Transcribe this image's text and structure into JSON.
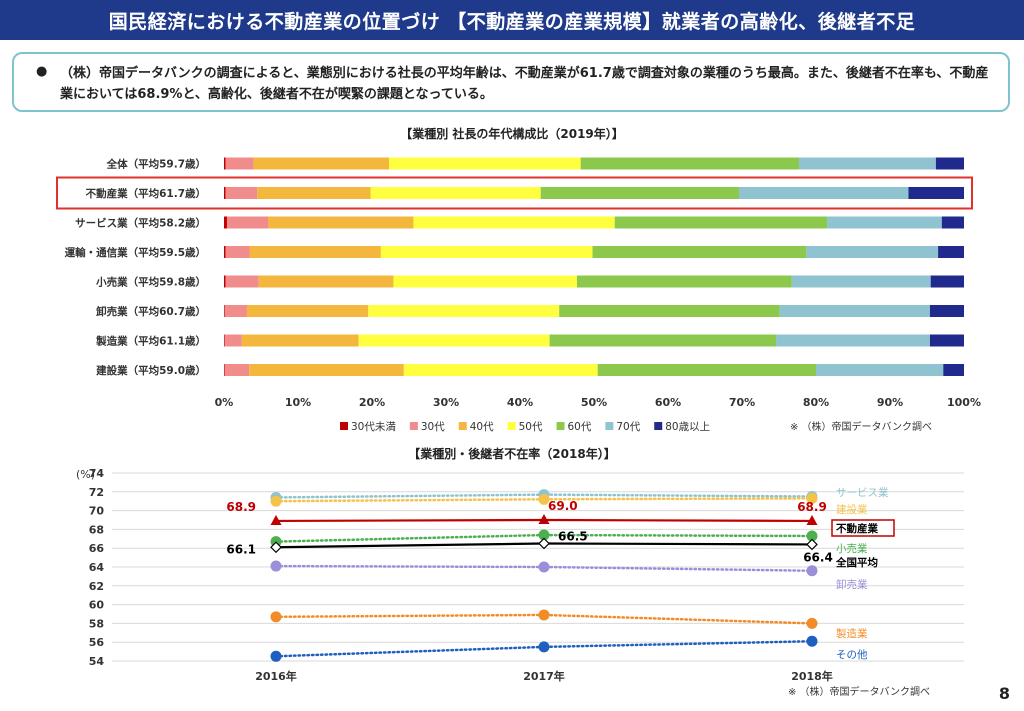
{
  "header": {
    "title": "国民経済における不動産業の位置づけ 【不動産業の産業規模】就業者の高齢化、後継者不足"
  },
  "note": {
    "bullet": "●",
    "text": "（株）帝国データバンクの調査によると、業態別における社長の平均年齢は、不動産業が61.7歳で調査対象の業種のうち最高。また、後継者不在率も、不動産業においては68.9%と、高齢化、後継者不在が喫緊の課題となっている。"
  },
  "page_number": "8",
  "chart_data": [
    {
      "type": "bar",
      "orientation": "horizontal-stacked-100",
      "title": "【業種別 社長の年代構成比（2019年）】",
      "categories": [
        "全体（平均59.7歳）",
        "不動産業（平均61.7歳）",
        "サービス業（平均58.2歳）",
        "運輸・通信業（平均59.5歳）",
        "小売業（平均59.8歳）",
        "卸売業（平均60.7歳）",
        "製造業（平均61.1歳）",
        "建設業（平均59.0歳）"
      ],
      "highlight_category": "不動産業（平均61.7歳）",
      "series": [
        {
          "name": "30代未満",
          "color": "#c00000",
          "values": [
            0.2,
            0.2,
            0.4,
            0.2,
            0.2,
            0.1,
            0.1,
            0.1
          ]
        },
        {
          "name": "30代",
          "color": "#f08c8c",
          "values": [
            3.8,
            4.3,
            5.6,
            3.3,
            4.5,
            3.0,
            2.3,
            3.3
          ]
        },
        {
          "name": "40代",
          "color": "#f4b73e",
          "values": [
            18.3,
            15.3,
            19.6,
            17.7,
            18.2,
            16.4,
            15.8,
            20.9
          ]
        },
        {
          "name": "50代",
          "color": "#ffff3f",
          "values": [
            25.9,
            23.0,
            27.2,
            28.6,
            24.8,
            25.8,
            25.8,
            26.2
          ]
        },
        {
          "name": "60代",
          "color": "#8cc84b",
          "values": [
            29.5,
            26.8,
            28.7,
            28.9,
            29.0,
            29.8,
            30.6,
            29.5
          ]
        },
        {
          "name": "70代",
          "color": "#8ec3cf",
          "values": [
            18.5,
            22.9,
            15.5,
            17.8,
            18.8,
            20.3,
            20.8,
            17.2
          ]
        },
        {
          "name": "80歳以上",
          "color": "#1f2a8c",
          "values": [
            3.8,
            7.5,
            3.0,
            3.5,
            4.5,
            4.6,
            4.6,
            2.8
          ]
        }
      ],
      "x_ticks": [
        "0%",
        "10%",
        "20%",
        "30%",
        "40%",
        "50%",
        "60%",
        "70%",
        "80%",
        "90%",
        "100%"
      ],
      "xlim": [
        0,
        100
      ],
      "legend_placement": "bottom",
      "source": "※ （株）帝国データバンク調べ"
    },
    {
      "type": "line",
      "title": "【業種別・後継者不在率（2018年）】",
      "ylabel": "(%)",
      "ylim": [
        54,
        74
      ],
      "y_ticks": [
        "54",
        "56",
        "58",
        "60",
        "62",
        "64",
        "66",
        "68",
        "70",
        "72",
        "74"
      ],
      "x": [
        "2016年",
        "2017年",
        "2018年"
      ],
      "grid": true,
      "series": [
        {
          "name": "サービス業",
          "color": "#8ec3cf",
          "style": "dotted",
          "values": [
            71.4,
            71.7,
            71.5
          ]
        },
        {
          "name": "建設業",
          "color": "#f5c24a",
          "style": "dotted",
          "values": [
            71.0,
            71.2,
            71.3
          ]
        },
        {
          "name": "不動産業",
          "color": "#c00000",
          "style": "solid",
          "values": [
            68.9,
            69.0,
            68.9
          ],
          "labels": [
            "68.9",
            "69.0",
            "68.9"
          ]
        },
        {
          "name": "小売業",
          "color": "#4caf50",
          "style": "dotted",
          "values": [
            66.7,
            67.4,
            67.3
          ]
        },
        {
          "name": "全国平均",
          "color": "#000000",
          "style": "solid",
          "values": [
            66.1,
            66.5,
            66.4
          ],
          "labels": [
            "66.1",
            "66.5",
            "66.4"
          ]
        },
        {
          "name": "卸売業",
          "color": "#9a8fd8",
          "style": "dotted",
          "values": [
            64.1,
            64.0,
            63.6
          ]
        },
        {
          "name": "製造業",
          "color": "#f28c28",
          "style": "dotted",
          "values": [
            58.7,
            58.9,
            58.0
          ]
        },
        {
          "name": "その他",
          "color": "#1f5fbf",
          "style": "dotted",
          "values": [
            54.5,
            55.5,
            56.1
          ]
        }
      ],
      "highlight_series": "不動産業",
      "source": "※ （株）帝国データバンク調べ"
    }
  ]
}
